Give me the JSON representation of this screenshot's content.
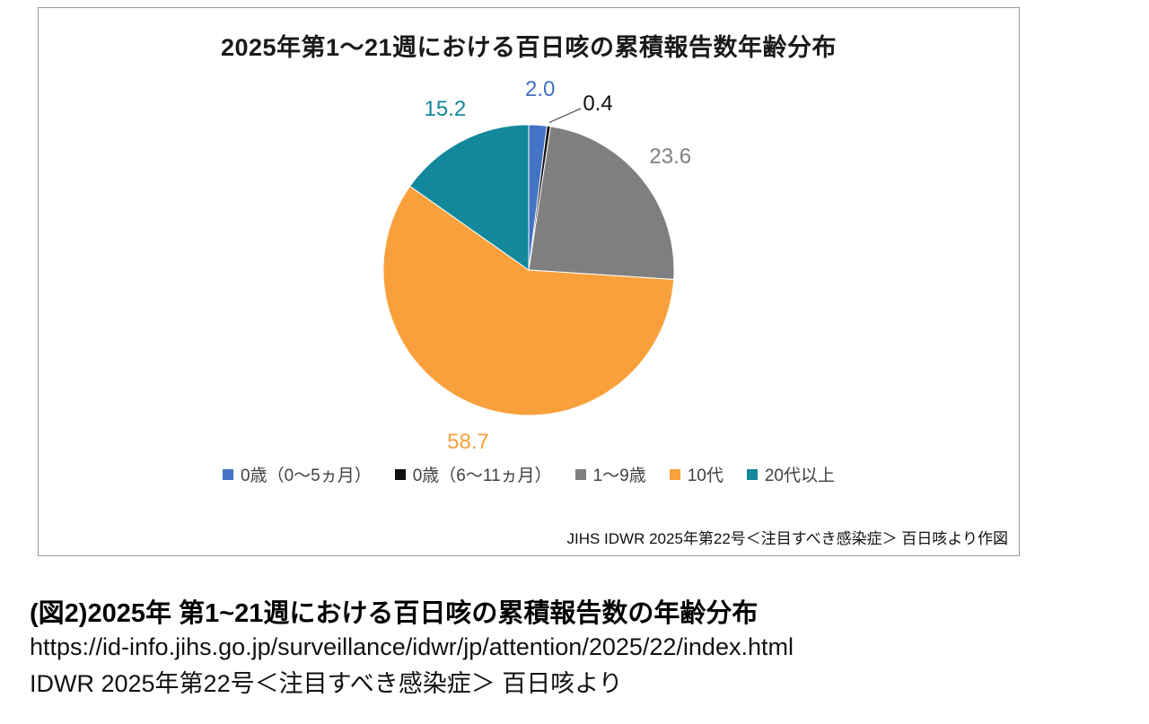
{
  "chart_data": {
    "type": "pie",
    "title": "2025年第1〜21週における百日咳の累積報告数年齢分布",
    "labels": [
      "0歳（0〜5ヵ月）",
      "0歳（6〜11ヵ月）",
      "1〜9歳",
      "10代",
      "20代以上"
    ],
    "values": [
      2.0,
      0.4,
      23.6,
      58.7,
      15.2
    ],
    "data_labels": [
      "2.0",
      "0.4",
      "23.6",
      "58.7",
      "15.2"
    ],
    "colors": [
      "#4472C4",
      "#111111",
      "#7F7F7F",
      "#F8A13C",
      "#13879B"
    ],
    "start_angle_deg": 0,
    "direction": "clockwise",
    "legend_position": "bottom",
    "source_note": "JIHS IDWR 2025年第22号＜注目すべき感染症＞ 百日咳より作図"
  },
  "caption": {
    "heading": "(図2)2025年 第1~21週における百日咳の累積報告数の年齢分布",
    "url": "https://id-info.jihs.go.jp/surveillance/idwr/jp/attention/2025/22/index.html",
    "source": "IDWR 2025年第22号＜注目すべき感染症＞ 百日咳より"
  }
}
